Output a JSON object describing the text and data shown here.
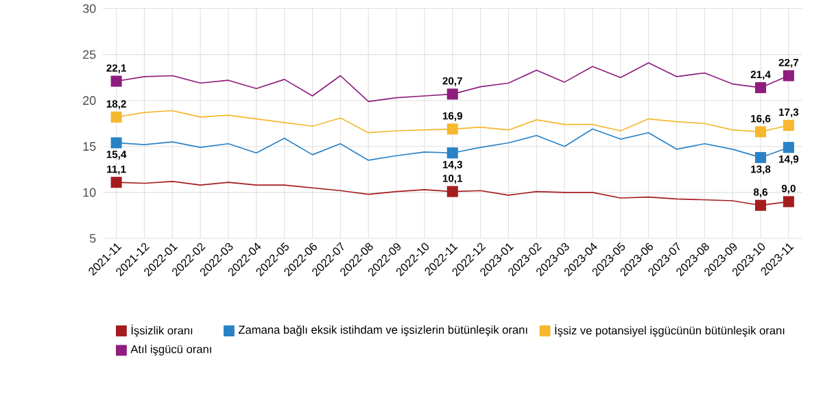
{
  "chart_data": {
    "type": "line",
    "x": [
      "2021-11",
      "2021-12",
      "2022-01",
      "2022-02",
      "2022-03",
      "2022-04",
      "2022-05",
      "2022-06",
      "2022-07",
      "2022-08",
      "2022-09",
      "2022-10",
      "2022-11",
      "2022-12",
      "2023-01",
      "2023-02",
      "2023-03",
      "2023-04",
      "2023-05",
      "2023-06",
      "2023-07",
      "2023-08",
      "2023-09",
      "2023-10",
      "2023-11"
    ],
    "xlim": [
      "2021-11",
      "2023-11"
    ],
    "xticks": [
      "2021-11",
      "2021-12",
      "2022-01",
      "2022-02",
      "2022-03",
      "2022-04",
      "2022-05",
      "2022-06",
      "2022-07",
      "2022-08",
      "2022-09",
      "2022-10",
      "2022-11",
      "2022-12",
      "2023-01",
      "2023-02",
      "2023-03",
      "2023-04",
      "2023-05",
      "2023-06",
      "2023-07",
      "2023-08",
      "2023-09",
      "2023-10",
      "2023-11"
    ],
    "ylim": [
      5,
      30
    ],
    "yticks": [
      5,
      10,
      15,
      20,
      25,
      30
    ],
    "grid": true,
    "legend": "bottom",
    "line_style": "solid",
    "series": [
      {
        "name": "İşsizlik oranı",
        "color": "#a51c1f",
        "values": [
          11.1,
          11.0,
          11.2,
          10.8,
          11.1,
          10.8,
          10.8,
          10.5,
          10.2,
          9.8,
          10.1,
          10.3,
          10.1,
          10.2,
          9.7,
          10.1,
          10.0,
          10.0,
          9.4,
          9.5,
          9.3,
          9.2,
          9.1,
          8.6,
          9.0
        ],
        "value_labels": [
          "11,1",
          null,
          null,
          null,
          null,
          null,
          null,
          null,
          null,
          null,
          null,
          null,
          "10,1",
          null,
          null,
          null,
          null,
          null,
          null,
          null,
          null,
          null,
          null,
          "8,6",
          "9,0"
        ]
      },
      {
        "name": "Zamana bağlı eksik istihdam ve işsizlerin bütünleşik oranı",
        "color": "#2a82c6",
        "values": [
          15.4,
          15.2,
          15.5,
          14.9,
          15.3,
          14.3,
          15.9,
          14.1,
          15.3,
          13.5,
          14.0,
          14.4,
          14.3,
          14.9,
          15.4,
          16.2,
          15.0,
          16.9,
          15.8,
          16.5,
          14.7,
          15.3,
          14.7,
          13.8,
          14.9
        ],
        "value_labels": [
          "15,4",
          null,
          null,
          null,
          null,
          null,
          null,
          null,
          null,
          null,
          null,
          null,
          "14,3",
          null,
          null,
          null,
          null,
          null,
          null,
          null,
          null,
          null,
          null,
          "13,8",
          "14,9"
        ]
      },
      {
        "name": "İşsiz ve potansiyel işgücünün bütünleşik oranı",
        "color": "#f5b82e",
        "values": [
          18.2,
          18.7,
          18.9,
          18.2,
          18.4,
          18.0,
          17.6,
          17.2,
          18.1,
          16.5,
          16.7,
          16.8,
          16.9,
          17.1,
          16.8,
          17.9,
          17.4,
          17.4,
          16.7,
          18.0,
          17.7,
          17.5,
          16.8,
          16.6,
          17.3
        ],
        "value_labels": [
          "18,2",
          null,
          null,
          null,
          null,
          null,
          null,
          null,
          null,
          null,
          null,
          null,
          "16,9",
          null,
          null,
          null,
          null,
          null,
          null,
          null,
          null,
          null,
          null,
          "16,6",
          "17,3"
        ]
      },
      {
        "name": "Atıl işgücü oranı",
        "color": "#8e1d7e",
        "values": [
          22.1,
          22.6,
          22.7,
          21.9,
          22.2,
          21.3,
          22.3,
          20.5,
          22.7,
          19.9,
          20.3,
          20.5,
          20.7,
          21.5,
          21.9,
          23.3,
          22.0,
          23.7,
          22.5,
          24.1,
          22.6,
          23.0,
          21.8,
          21.4,
          22.7
        ],
        "value_labels": [
          "22,1",
          null,
          null,
          null,
          null,
          null,
          null,
          null,
          null,
          null,
          null,
          null,
          "20,7",
          null,
          null,
          null,
          null,
          null,
          null,
          null,
          null,
          null,
          null,
          "21,4",
          "22,7"
        ]
      }
    ]
  }
}
